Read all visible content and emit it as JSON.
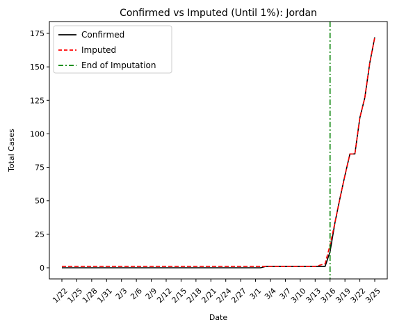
{
  "chart_data": {
    "type": "line",
    "title": "Confirmed vs Imputed (Until 1%): Jordan",
    "xlabel": "Date",
    "ylabel": "Total Cases",
    "ylim": [
      -8,
      180
    ],
    "yticks": [
      0,
      25,
      50,
      75,
      100,
      125,
      150,
      175
    ],
    "x": [
      "1/22",
      "1/23",
      "1/24",
      "1/25",
      "1/26",
      "1/27",
      "1/28",
      "1/29",
      "1/30",
      "1/31",
      "2/1",
      "2/2",
      "2/3",
      "2/4",
      "2/5",
      "2/6",
      "2/7",
      "2/8",
      "2/9",
      "2/10",
      "2/11",
      "2/12",
      "2/13",
      "2/14",
      "2/15",
      "2/16",
      "2/17",
      "2/18",
      "2/19",
      "2/20",
      "2/21",
      "2/22",
      "2/23",
      "2/24",
      "2/25",
      "2/26",
      "2/27",
      "2/28",
      "2/29",
      "3/1",
      "3/2",
      "3/3",
      "3/4",
      "3/5",
      "3/6",
      "3/7",
      "3/8",
      "3/9",
      "3/10",
      "3/11",
      "3/12",
      "3/13",
      "3/14",
      "3/15",
      "3/16",
      "3/17",
      "3/18",
      "3/19",
      "3/20",
      "3/21",
      "3/22",
      "3/23",
      "3/24",
      "3/25"
    ],
    "xtick_labels": [
      "1/22",
      "1/25",
      "1/28",
      "1/31",
      "2/3",
      "2/6",
      "2/9",
      "2/12",
      "2/15",
      "2/18",
      "2/21",
      "2/24",
      "2/27",
      "3/1",
      "3/4",
      "3/7",
      "3/10",
      "3/13",
      "3/16",
      "3/19",
      "3/22",
      "3/25"
    ],
    "grid": false,
    "legend_position": "top-left",
    "series": [
      {
        "name": "Confirmed",
        "color": "#000000",
        "style": "solid",
        "values": [
          0,
          0,
          0,
          0,
          0,
          0,
          0,
          0,
          0,
          0,
          0,
          0,
          0,
          0,
          0,
          0,
          0,
          0,
          0,
          0,
          0,
          0,
          0,
          0,
          0,
          0,
          0,
          0,
          0,
          0,
          0,
          0,
          0,
          0,
          0,
          0,
          0,
          0,
          0,
          0,
          0,
          1,
          1,
          1,
          1,
          1,
          1,
          1,
          1,
          1,
          1,
          1,
          1,
          1,
          12,
          34,
          52,
          69,
          85,
          85,
          112,
          127,
          153,
          172
        ]
      },
      {
        "name": "Imputed",
        "color": "#ff0000",
        "style": "dashed",
        "values": [
          1,
          1,
          1,
          1,
          1,
          1,
          1,
          1,
          1,
          1,
          1,
          1,
          1,
          1,
          1,
          1,
          1,
          1,
          1,
          1,
          1,
          1,
          1,
          1,
          1,
          1,
          1,
          1,
          1,
          1,
          1,
          1,
          1,
          1,
          1,
          1,
          1,
          1,
          1,
          1,
          1,
          1,
          1,
          1,
          1,
          1,
          1,
          1,
          1,
          1,
          1,
          1,
          2,
          3,
          17,
          34,
          52,
          69,
          85,
          85,
          112,
          127,
          153,
          172
        ]
      }
    ],
    "vlines": [
      {
        "name": "End of Imputation",
        "x": "3/16",
        "color": "#008000",
        "style": "dashdot"
      }
    ]
  }
}
